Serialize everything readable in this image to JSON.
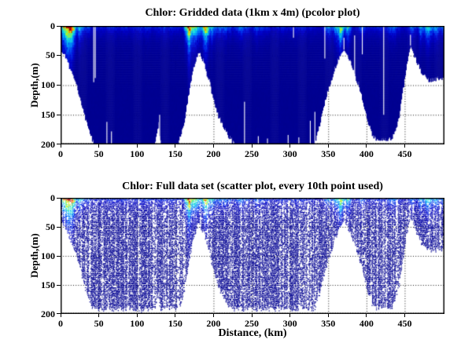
{
  "figure": {
    "bg_color": "#ffffff",
    "axis_color": "#000000",
    "grid_color": "#1a1a1a",
    "deep_water_color": "#0b0b9e"
  },
  "plots": [
    {
      "title": "Chlor: Gridded data (1km x 4m) (pcolor plot)",
      "ylabel": "Depth,(m)",
      "xlabel": "",
      "x_ticks": [
        0,
        50,
        100,
        150,
        200,
        250,
        300,
        350,
        400,
        450
      ],
      "x_tick_labels": [
        "0",
        "50",
        "100",
        "150",
        "200",
        "250",
        "300",
        "350",
        "400",
        "450"
      ],
      "y_ticks": [
        0,
        50,
        100,
        150,
        200
      ],
      "y_tick_labels": [
        "0",
        "50",
        "100",
        "150",
        "200"
      ]
    },
    {
      "title": "Chlor: Full data set (scatter plot, every 10th point used)",
      "ylabel": "Depth,(m)",
      "xlabel": "Distance, (km)",
      "x_ticks": [
        0,
        50,
        100,
        150,
        200,
        250,
        300,
        350,
        400,
        450
      ],
      "x_tick_labels": [
        "0",
        "50",
        "100",
        "150",
        "200",
        "250",
        "300",
        "350",
        "400",
        "450"
      ],
      "y_ticks": [
        0,
        50,
        100,
        150,
        200
      ],
      "y_tick_labels": [
        "0",
        "50",
        "100",
        "150",
        "200"
      ]
    }
  ],
  "chart_data": [
    {
      "type": "heatmap",
      "title": "Chlor: Gridded data (1km x 4m) (pcolor plot)",
      "variable": "Chlorophyll",
      "xlabel": "",
      "ylabel": "Depth,(m)",
      "x_range_km": [
        0,
        502
      ],
      "y_range_m": [
        0,
        200
      ],
      "y_axis_reversed": true,
      "grid": "dotted",
      "cell_size": "1km x 4m",
      "colormap": "jet",
      "colormap_stops": [
        [
          0.0,
          "#000086"
        ],
        [
          0.07,
          "#0000a2"
        ],
        [
          0.16,
          "#0000c6"
        ],
        [
          0.26,
          "#0028e8"
        ],
        [
          0.36,
          "#0064f8"
        ],
        [
          0.46,
          "#00b0f4"
        ],
        [
          0.55,
          "#14e0e4"
        ],
        [
          0.63,
          "#44f0a0"
        ],
        [
          0.72,
          "#96f838"
        ],
        [
          0.8,
          "#e6e400"
        ],
        [
          0.87,
          "#fca800"
        ],
        [
          0.93,
          "#f44800"
        ],
        [
          1.0,
          "#ae0000"
        ]
      ],
      "background_value": 0.12,
      "seafloor_km_m": [
        [
          0,
          42
        ],
        [
          6,
          52
        ],
        [
          12,
          72
        ],
        [
          21,
          104
        ],
        [
          29,
          142
        ],
        [
          37,
          178
        ],
        [
          44,
          200
        ],
        [
          122,
          200
        ],
        [
          127,
          165
        ],
        [
          131,
          200
        ],
        [
          152,
          200
        ],
        [
          160,
          170
        ],
        [
          165,
          128
        ],
        [
          170,
          90
        ],
        [
          175,
          60
        ],
        [
          179,
          46
        ],
        [
          182,
          45
        ],
        [
          186,
          58
        ],
        [
          190,
          76
        ],
        [
          195,
          98
        ],
        [
          200,
          128
        ],
        [
          206,
          152
        ],
        [
          214,
          174
        ],
        [
          222,
          190
        ],
        [
          230,
          200
        ],
        [
          328,
          200
        ],
        [
          334,
          188
        ],
        [
          340,
          156
        ],
        [
          346,
          122
        ],
        [
          352,
          94
        ],
        [
          358,
          72
        ],
        [
          364,
          50
        ],
        [
          370,
          40
        ],
        [
          374,
          48
        ],
        [
          379,
          62
        ],
        [
          384,
          82
        ],
        [
          389,
          98
        ],
        [
          394,
          122
        ],
        [
          399,
          148
        ],
        [
          403,
          168
        ],
        [
          407,
          182
        ],
        [
          412,
          190
        ],
        [
          418,
          193
        ],
        [
          426,
          192
        ],
        [
          433,
          188
        ],
        [
          438,
          176
        ],
        [
          442,
          152
        ],
        [
          447,
          108
        ],
        [
          452,
          66
        ],
        [
          455,
          44
        ],
        [
          457,
          33
        ],
        [
          460,
          42
        ],
        [
          464,
          56
        ],
        [
          469,
          72
        ],
        [
          474,
          84
        ],
        [
          480,
          90
        ],
        [
          487,
          92
        ],
        [
          494,
          88
        ],
        [
          502,
          86
        ]
      ],
      "surface_blooms_center_halfwidth_strength": [
        [
          10,
          11,
          1.0
        ],
        [
          25,
          7,
          0.5
        ],
        [
          34,
          6,
          0.3
        ],
        [
          134,
          12,
          0.22
        ],
        [
          168,
          6,
          0.97
        ],
        [
          175,
          12,
          0.62
        ],
        [
          190,
          6,
          0.92
        ],
        [
          198,
          8,
          0.45
        ],
        [
          211,
          18,
          0.33
        ],
        [
          235,
          14,
          0.3
        ],
        [
          260,
          16,
          0.28
        ],
        [
          309,
          26,
          0.2
        ],
        [
          350,
          8,
          0.35
        ],
        [
          362,
          9,
          0.5
        ],
        [
          366,
          4,
          0.9
        ],
        [
          375,
          7,
          0.45
        ],
        [
          394,
          8,
          0.28
        ],
        [
          433,
          12,
          0.3
        ],
        [
          461,
          8,
          0.3
        ],
        [
          472,
          7,
          0.45
        ],
        [
          480,
          8,
          0.55
        ],
        [
          492,
          8,
          0.4
        ],
        [
          500,
          6,
          0.35
        ]
      ],
      "missing_data_white_columns_km_d0_d1": [
        [
          42.8,
          0,
          95
        ],
        [
          44.8,
          0,
          88
        ],
        [
          240,
          128,
          200
        ],
        [
          304,
          2,
          20
        ],
        [
          345,
          0,
          55
        ],
        [
          384,
          16,
          99
        ],
        [
          394,
          0,
          48
        ],
        [
          422,
          0,
          150
        ],
        [
          60,
          162,
          200
        ],
        [
          66,
          178,
          200
        ],
        [
          129,
          150,
          200
        ],
        [
          258,
          186,
          200
        ],
        [
          270,
          190,
          200
        ],
        [
          297,
          184,
          200
        ],
        [
          311,
          188,
          200
        ],
        [
          326,
          160,
          200
        ],
        [
          332,
          145,
          200
        ],
        [
          370,
          20,
          40
        ],
        [
          457,
          15,
          33
        ]
      ],
      "deep_data_spike_columns_km": [
        48,
        55,
        63,
        235,
        243,
        266,
        278,
        296,
        308,
        320,
        330
      ]
    },
    {
      "type": "scatter",
      "title": "Chlor: Full data set (scatter plot, every 10th point used)",
      "variable": "Chlorophyll",
      "xlabel": "Distance, (km)",
      "ylabel": "Depth,(m)",
      "x_range_km": [
        0,
        502
      ],
      "y_range_m": [
        0,
        200
      ],
      "y_axis_reversed": true,
      "grid": "dotted",
      "colormap": "jet",
      "subsampling": "every 10th point",
      "max_sample_depth_m": 192,
      "uses_same_field_as": "chart_data[0]"
    }
  ]
}
